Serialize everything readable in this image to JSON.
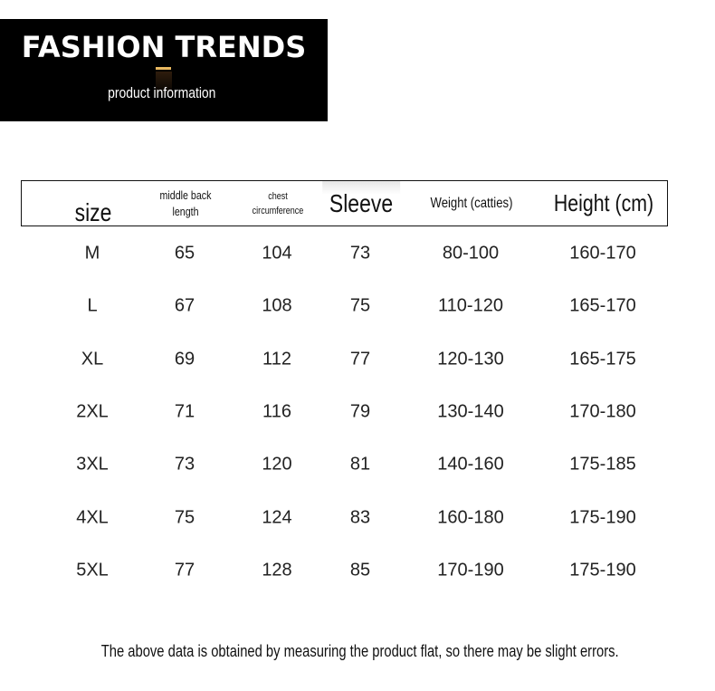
{
  "banner": {
    "title": "FASHION TRENDS",
    "subtitle": "product information",
    "accent_color": "#e8b860"
  },
  "table": {
    "headers": [
      "size",
      "middle back length",
      "chest circumference",
      "Sleeve",
      "Weight (catties)",
      "Height (cm)"
    ],
    "rows": [
      [
        "M",
        "65",
        "104",
        "73",
        "80-100",
        "160-170"
      ],
      [
        "L",
        "67",
        "108",
        "75",
        "110-120",
        "165-170"
      ],
      [
        "XL",
        "69",
        "112",
        "77",
        "120-130",
        "165-175"
      ],
      [
        "2XL",
        "71",
        "116",
        "79",
        "130-140",
        "170-180"
      ],
      [
        "3XL",
        "73",
        "120",
        "81",
        "140-160",
        "175-185"
      ],
      [
        "4XL",
        "75",
        "124",
        "83",
        "160-180",
        "175-190"
      ],
      [
        "5XL",
        "77",
        "128",
        "85",
        "170-190",
        "175-190"
      ]
    ]
  },
  "footer": "The above data is obtained by measuring the product flat, so there may be slight errors."
}
